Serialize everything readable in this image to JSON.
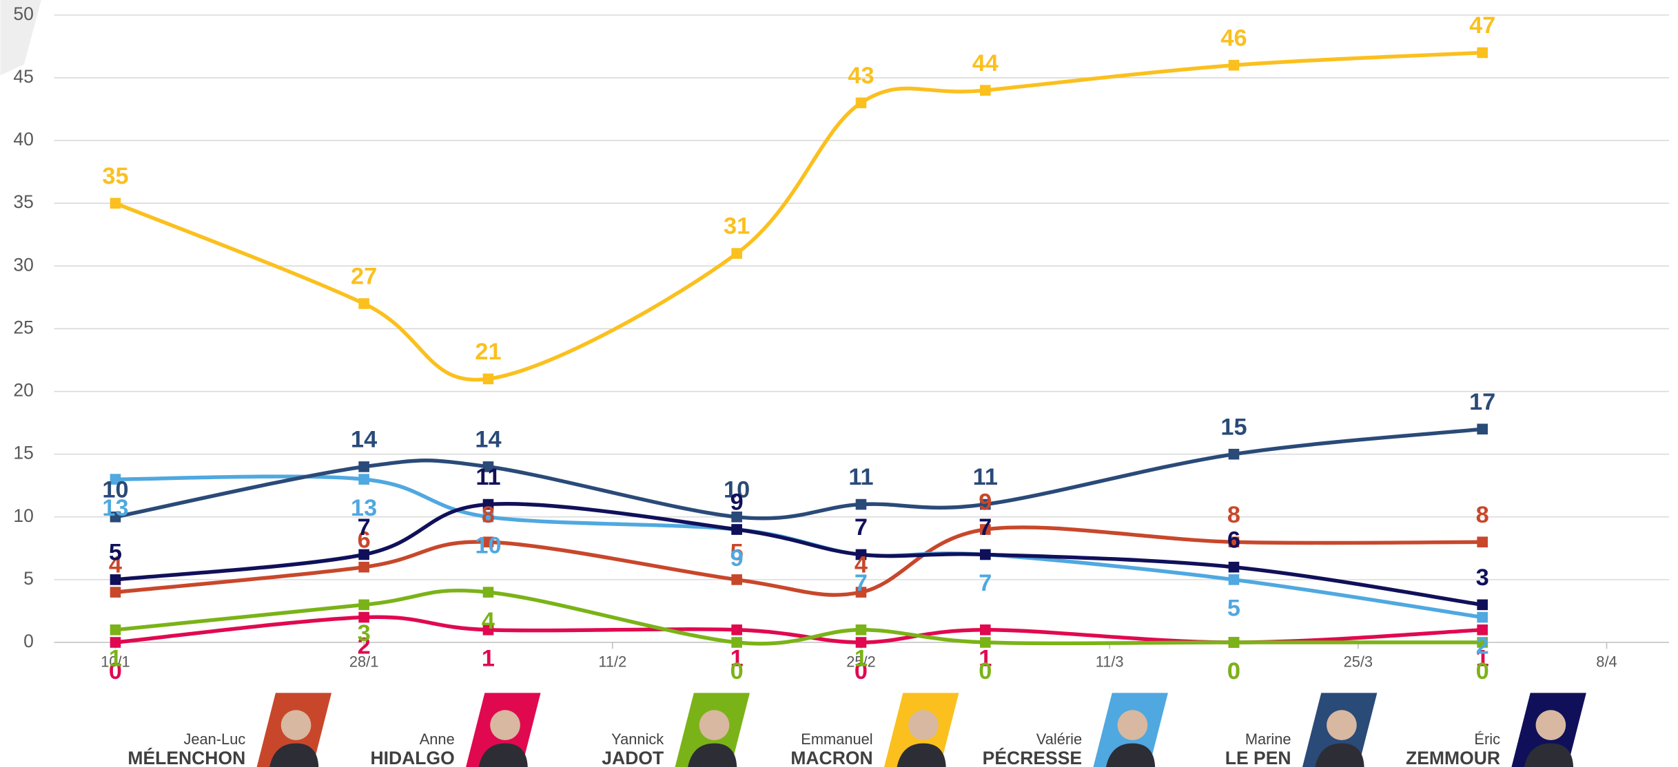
{
  "chart_data": {
    "type": "line",
    "x": [
      0,
      2,
      3,
      5,
      6,
      7,
      9,
      11
    ],
    "xlim": [
      -0.15,
      12.4
    ],
    "xticks": [
      {
        "value": 0,
        "label": "10/1"
      },
      {
        "value": 2,
        "label": "28/1"
      },
      {
        "value": 4,
        "label": "11/2"
      },
      {
        "value": 6,
        "label": "25/2"
      },
      {
        "value": 8,
        "label": "11/3"
      },
      {
        "value": 10,
        "label": "25/3"
      },
      {
        "value": 12,
        "label": "8/4"
      }
    ],
    "ylim": [
      0,
      50
    ],
    "yticks": [
      0,
      5,
      10,
      15,
      20,
      25,
      30,
      35,
      40,
      45,
      50
    ],
    "grid": true,
    "series": [
      {
        "first_name": "Jean-Luc",
        "name": "MÉLENCHON",
        "color": "#c8472b",
        "values": [
          4,
          6,
          8,
          5,
          4,
          9,
          8,
          8
        ]
      },
      {
        "first_name": "Anne",
        "name": "HIDALGO",
        "color": "#e0094f",
        "values": [
          0,
          2,
          1,
          1,
          0,
          1,
          0,
          1
        ]
      },
      {
        "first_name": "Yannick",
        "name": "JADOT",
        "color": "#7ab317",
        "values": [
          1,
          3,
          4,
          0,
          1,
          0,
          0,
          0
        ]
      },
      {
        "first_name": "Emmanuel",
        "name": "MACRON",
        "color": "#fbc01e",
        "values": [
          35,
          27,
          21,
          31,
          43,
          44,
          46,
          47
        ]
      },
      {
        "first_name": "Valérie",
        "name": "PÉCRESSE",
        "color": "#4fa8e0",
        "values": [
          13,
          13,
          10,
          9,
          7,
          7,
          5,
          2
        ]
      },
      {
        "first_name": "Marine",
        "name": "LE PEN",
        "color": "#2a4a78",
        "values": [
          10,
          14,
          14,
          10,
          11,
          11,
          15,
          17
        ]
      },
      {
        "first_name": "Éric",
        "name": "ZEMMOUR",
        "color": "#10105a",
        "values": [
          5,
          7,
          11,
          9,
          7,
          7,
          6,
          3
        ]
      }
    ]
  }
}
